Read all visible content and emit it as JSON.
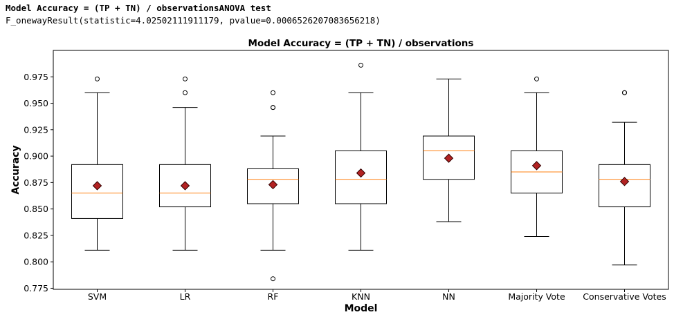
{
  "output": {
    "line1": "Model Accuracy = (TP + TN) / observationsANOVA test",
    "line2": "F_onewayResult(statistic=4.02502111911179, pvalue=0.0006526207083656218)"
  },
  "chart_data": {
    "type": "box",
    "title": "Model Accuracy = (TP + TN) / observations",
    "xlabel": "Model",
    "ylabel": "Accuracy",
    "ylim": [
      0.774,
      1.0
    ],
    "yticks": [
      0.775,
      0.8,
      0.825,
      0.85,
      0.875,
      0.9,
      0.925,
      0.95,
      0.975
    ],
    "ytick_labels": [
      "0.775",
      "0.800",
      "0.825",
      "0.850",
      "0.875",
      "0.900",
      "0.925",
      "0.950",
      "0.975"
    ],
    "grid": false,
    "categories": [
      "SVM",
      "LR",
      "RF",
      "KNN",
      "NN",
      "Majority Vote",
      "Conservative Votes"
    ],
    "boxes": [
      {
        "whislo": 0.811,
        "q1": 0.841,
        "med": 0.865,
        "q3": 0.892,
        "whishi": 0.96,
        "mean": 0.872,
        "fliers": [
          0.973
        ]
      },
      {
        "whislo": 0.811,
        "q1": 0.852,
        "med": 0.865,
        "q3": 0.892,
        "whishi": 0.946,
        "mean": 0.872,
        "fliers": [
          0.96,
          0.973
        ]
      },
      {
        "whislo": 0.811,
        "q1": 0.855,
        "med": 0.878,
        "q3": 0.888,
        "whishi": 0.919,
        "mean": 0.873,
        "fliers": [
          0.784,
          0.946,
          0.946,
          0.96
        ]
      },
      {
        "whislo": 0.811,
        "q1": 0.855,
        "med": 0.878,
        "q3": 0.905,
        "whishi": 0.96,
        "mean": 0.884,
        "fliers": [
          0.986
        ]
      },
      {
        "whislo": 0.838,
        "q1": 0.878,
        "med": 0.905,
        "q3": 0.919,
        "whishi": 0.973,
        "mean": 0.898,
        "fliers": []
      },
      {
        "whislo": 0.824,
        "q1": 0.865,
        "med": 0.885,
        "q3": 0.905,
        "whishi": 0.96,
        "mean": 0.891,
        "fliers": [
          0.973
        ]
      },
      {
        "whislo": 0.797,
        "q1": 0.852,
        "med": 0.878,
        "q3": 0.892,
        "whishi": 0.932,
        "mean": 0.876,
        "fliers": [
          0.96,
          0.96
        ]
      }
    ],
    "colors": {
      "box": "#000000",
      "median": "#ff7f0e",
      "mean_fill": "#b22222",
      "mean_edge": "#330000",
      "flier": "#000000"
    }
  }
}
